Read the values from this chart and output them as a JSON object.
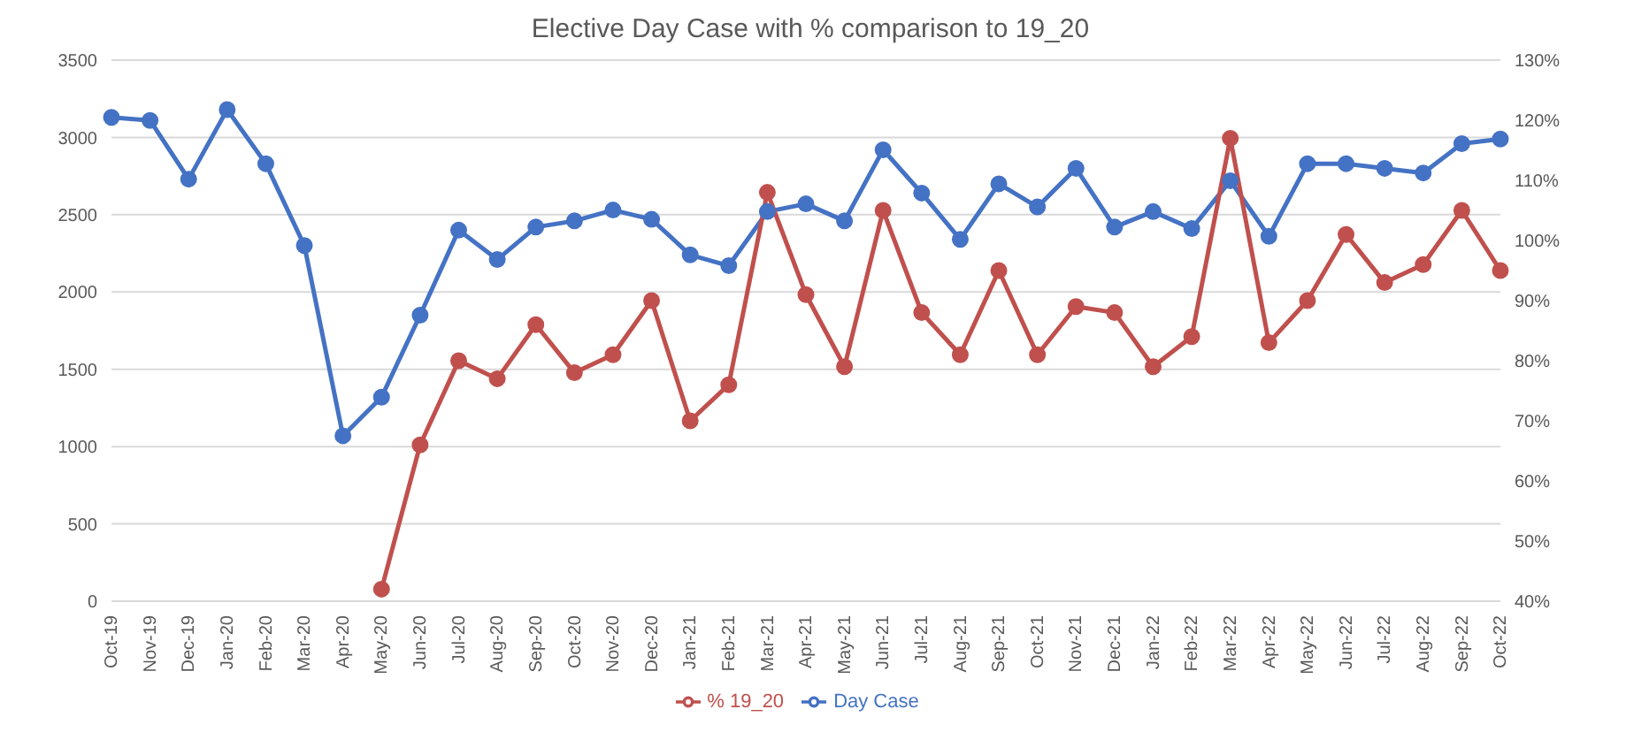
{
  "chart_data": {
    "type": "line",
    "title": "Elective Day Case with % comparison to 19_20",
    "categories": [
      "Oct-19",
      "Nov-19",
      "Dec-19",
      "Jan-20",
      "Feb-20",
      "Mar-20",
      "Apr-20",
      "May-20",
      "Jun-20",
      "Jul-20",
      "Aug-20",
      "Sep-20",
      "Oct-20",
      "Nov-20",
      "Dec-20",
      "Jan-21",
      "Feb-21",
      "Mar-21",
      "Apr-21",
      "May-21",
      "Jun-21",
      "Jul-21",
      "Aug-21",
      "Sep-21",
      "Oct-21",
      "Nov-21",
      "Dec-21",
      "Jan-22",
      "Feb-22",
      "Mar-22",
      "Apr-22",
      "May-22",
      "Jun-22",
      "Jul-22",
      "Aug-22",
      "Sep-22",
      "Oct-22"
    ],
    "series": [
      {
        "name": "Day Case",
        "color": "#4472c4",
        "values": [
          3130,
          3110,
          2730,
          3180,
          2830,
          2300,
          1070,
          1320,
          1850,
          2400,
          2210,
          2420,
          2460,
          2530,
          2470,
          2240,
          2170,
          2520,
          2570,
          2460,
          2920,
          2640,
          2340,
          2700,
          2550,
          2800,
          2420,
          2520,
          2410,
          2720,
          2360,
          2830,
          2830,
          2800,
          2770,
          2960,
          2990
        ]
      },
      {
        "name": "% 19_20",
        "color": "#c0504d",
        "axis": "y2",
        "values": [
          null,
          null,
          null,
          null,
          null,
          null,
          null,
          42,
          66,
          80,
          77,
          86,
          78,
          81,
          90,
          70,
          76,
          108,
          91,
          79,
          105,
          88,
          81,
          95,
          81,
          89,
          88,
          79,
          84,
          117,
          83,
          90,
          101,
          93,
          96,
          105,
          95
        ]
      }
    ],
    "ylim": [
      0,
      3500
    ],
    "yticks": [
      0,
      500,
      1000,
      1500,
      2000,
      2500,
      3000,
      3500
    ],
    "y2lim": [
      40,
      130
    ],
    "y2ticks": [
      {
        "value": 40,
        "label": "40%"
      },
      {
        "value": 50,
        "label": "50%"
      },
      {
        "value": 60,
        "label": "60%"
      },
      {
        "value": 70,
        "label": "70%"
      },
      {
        "value": 80,
        "label": "80%"
      },
      {
        "value": 90,
        "label": "90%"
      },
      {
        "value": 100,
        "label": "100%"
      },
      {
        "value": 110,
        "label": "110%"
      },
      {
        "value": 120,
        "label": "120%"
      },
      {
        "value": 130,
        "label": "130%"
      }
    ],
    "grid": "y",
    "legend": "bottom",
    "marker": "circle"
  }
}
